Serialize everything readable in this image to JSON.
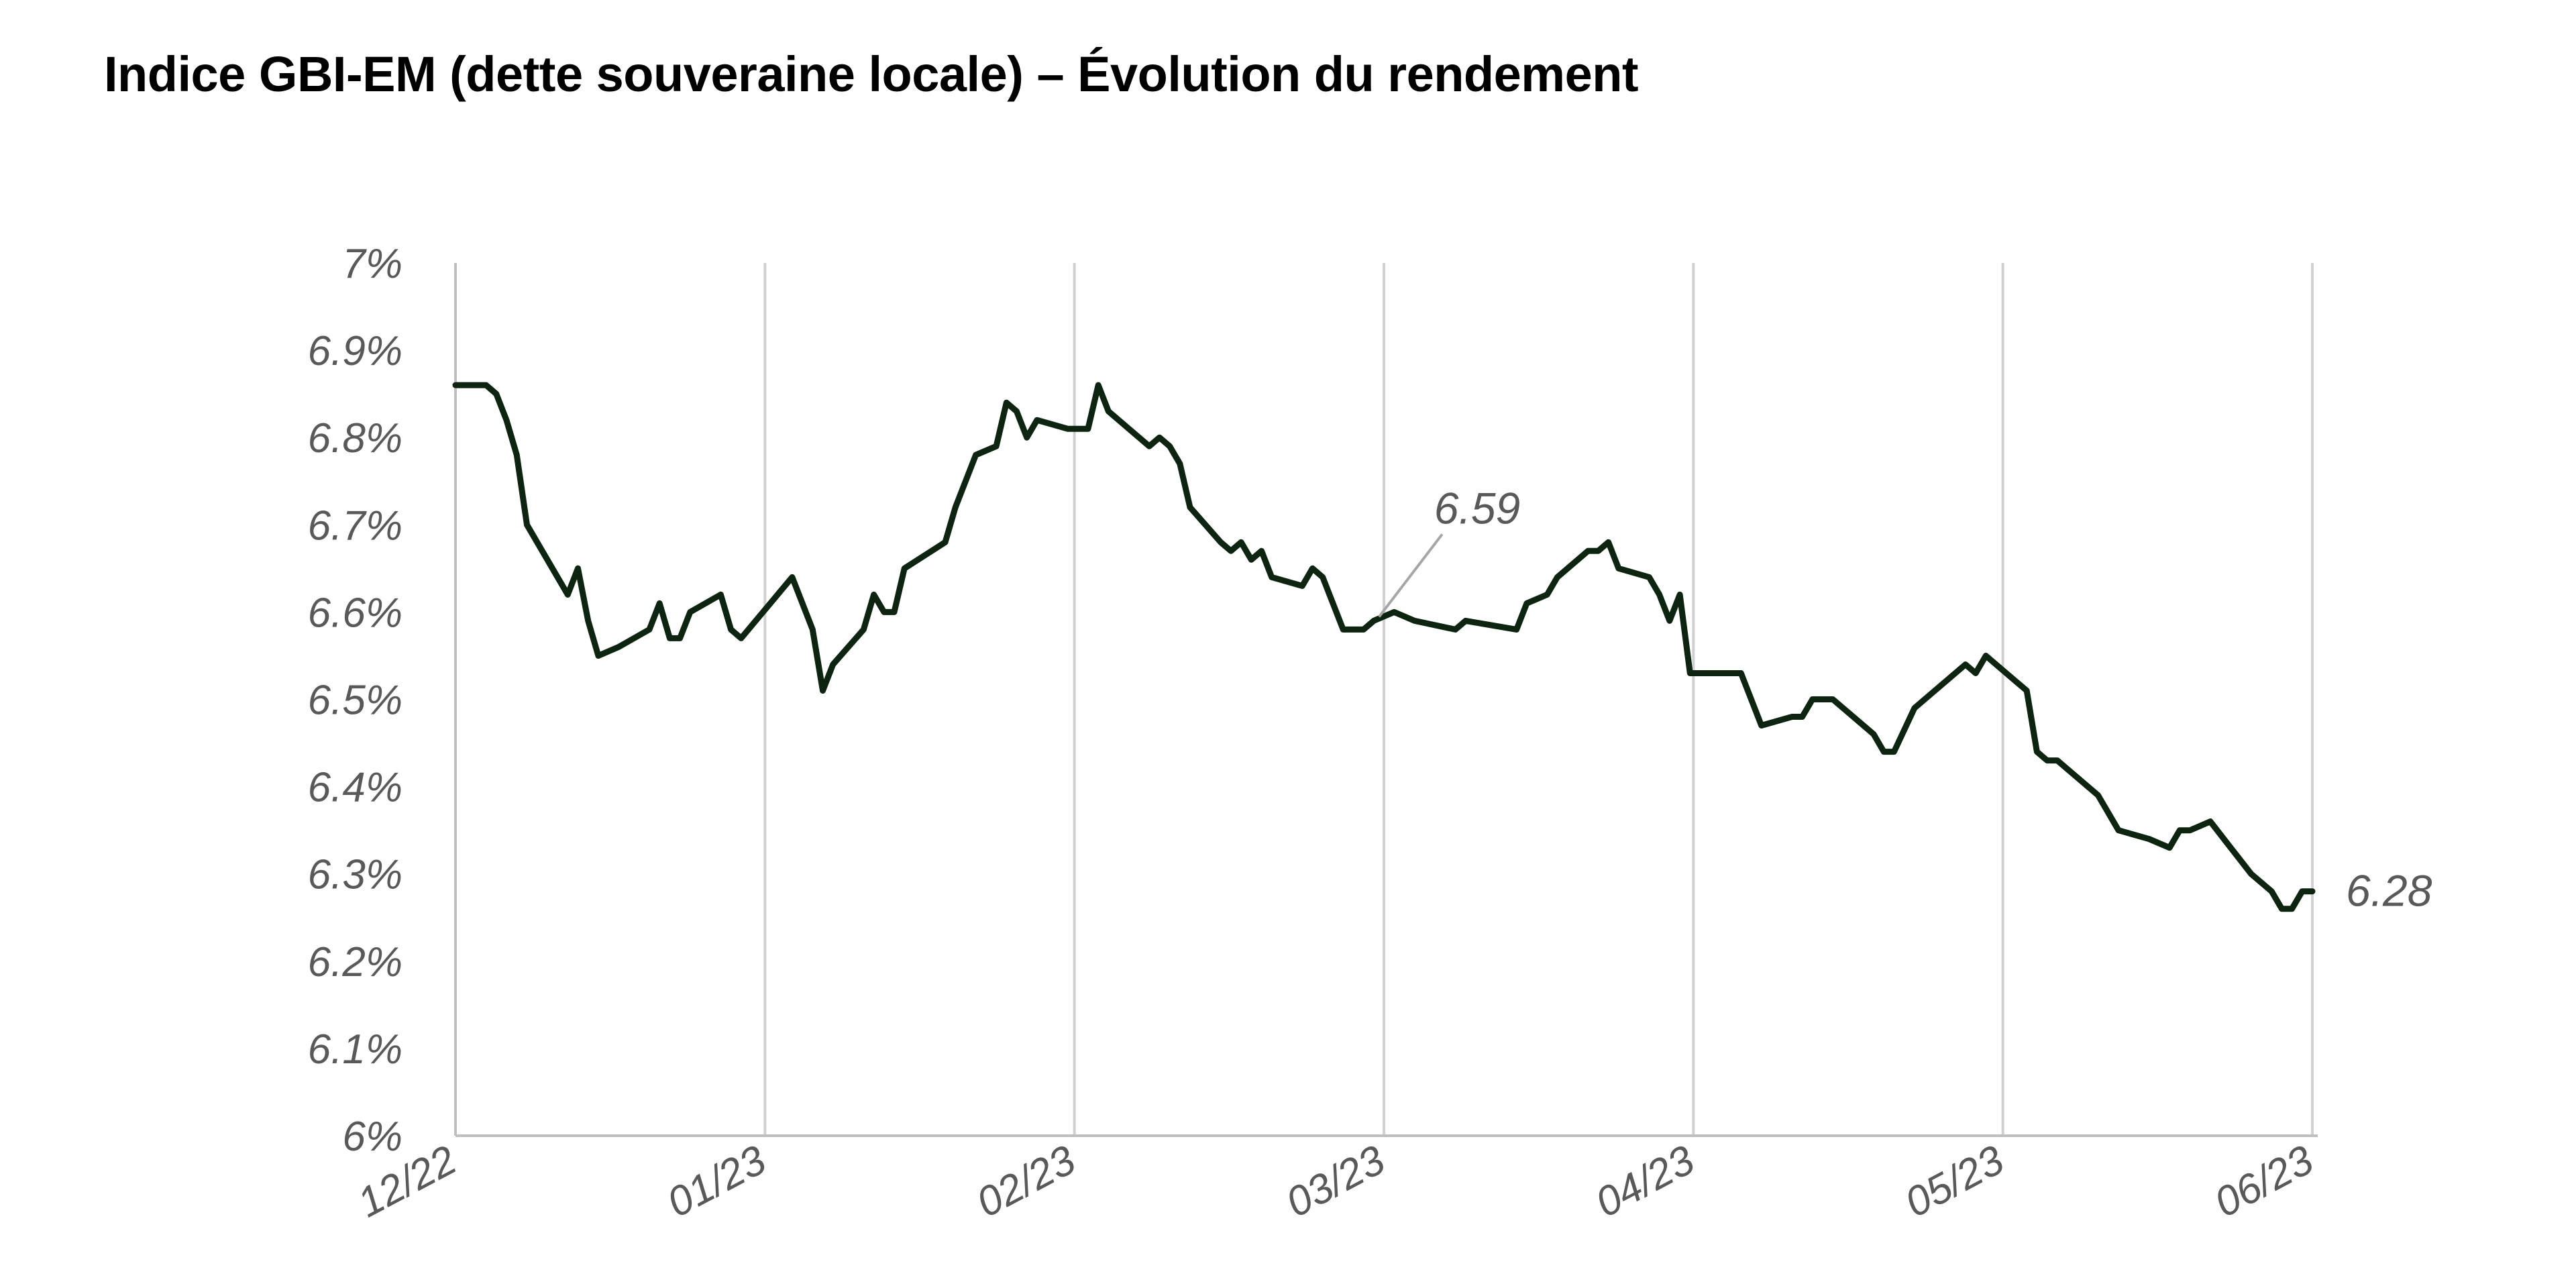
{
  "chart_data": {
    "type": "line",
    "title": "Indice GBI-EM (dette souveraine locale) – Évolution du rendement",
    "xlabel": "",
    "ylabel": "",
    "x_tick_labels": [
      "12/22",
      "01/23",
      "02/23",
      "03/23",
      "04/23",
      "05/23",
      "06/23"
    ],
    "y_tick_labels": [
      "7%",
      "6.9%",
      "6.8%",
      "6.7%",
      "6.6%",
      "6.5%",
      "6.4%",
      "6.3%",
      "6.2%",
      "6.1%",
      "6%"
    ],
    "ylim": [
      6.0,
      7.0
    ],
    "xlim": [
      "2022-12-01",
      "2023-06-01"
    ],
    "grid": "vertical",
    "legend": "none",
    "line_color": "#0d2410",
    "series": [
      {
        "points": [
          [
            "2022-12-01",
            6.86
          ],
          [
            "2022-12-04",
            6.86
          ],
          [
            "2022-12-05",
            6.85
          ],
          [
            "2022-12-06",
            6.82
          ],
          [
            "2022-12-07",
            6.78
          ],
          [
            "2022-12-08",
            6.7
          ],
          [
            "2022-12-10",
            6.66
          ],
          [
            "2022-12-12",
            6.62
          ],
          [
            "2022-12-13",
            6.65
          ],
          [
            "2022-12-14",
            6.59
          ],
          [
            "2022-12-15",
            6.55
          ],
          [
            "2022-12-17",
            6.56
          ],
          [
            "2022-12-20",
            6.58
          ],
          [
            "2022-12-21",
            6.61
          ],
          [
            "2022-12-22",
            6.57
          ],
          [
            "2022-12-23",
            6.57
          ],
          [
            "2022-12-24",
            6.6
          ],
          [
            "2022-12-27",
            6.62
          ],
          [
            "2022-12-28",
            6.58
          ],
          [
            "2022-12-29",
            6.57
          ],
          [
            "2023-01-03",
            6.64
          ],
          [
            "2023-01-05",
            6.58
          ],
          [
            "2023-01-06",
            6.51
          ],
          [
            "2023-01-07",
            6.54
          ],
          [
            "2023-01-10",
            6.58
          ],
          [
            "2023-01-11",
            6.62
          ],
          [
            "2023-01-12",
            6.6
          ],
          [
            "2023-01-13",
            6.6
          ],
          [
            "2023-01-14",
            6.65
          ],
          [
            "2023-01-18",
            6.68
          ],
          [
            "2023-01-19",
            6.72
          ],
          [
            "2023-01-21",
            6.78
          ],
          [
            "2023-01-23",
            6.79
          ],
          [
            "2023-01-24",
            6.84
          ],
          [
            "2023-01-25",
            6.83
          ],
          [
            "2023-01-26",
            6.8
          ],
          [
            "2023-01-27",
            6.82
          ],
          [
            "2023-01-30",
            6.81
          ],
          [
            "2023-01-31",
            6.81
          ],
          [
            "2023-02-01",
            6.81
          ],
          [
            "2023-02-02",
            6.86
          ],
          [
            "2023-02-03",
            6.83
          ],
          [
            "2023-02-07",
            6.79
          ],
          [
            "2023-02-08",
            6.8
          ],
          [
            "2023-02-09",
            6.79
          ],
          [
            "2023-02-10",
            6.77
          ],
          [
            "2023-02-11",
            6.72
          ],
          [
            "2023-02-14",
            6.68
          ],
          [
            "2023-02-15",
            6.67
          ],
          [
            "2023-02-16",
            6.68
          ],
          [
            "2023-02-17",
            6.66
          ],
          [
            "2023-02-18",
            6.67
          ],
          [
            "2023-02-19",
            6.64
          ],
          [
            "2023-02-22",
            6.63
          ],
          [
            "2023-02-23",
            6.65
          ],
          [
            "2023-02-24",
            6.64
          ],
          [
            "2023-02-26",
            6.58
          ],
          [
            "2023-02-28",
            6.58
          ],
          [
            "2023-03-01",
            6.59
          ],
          [
            "2023-03-03",
            6.6
          ],
          [
            "2023-03-05",
            6.59
          ],
          [
            "2023-03-09",
            6.58
          ],
          [
            "2023-03-10",
            6.59
          ],
          [
            "2023-03-15",
            6.58
          ],
          [
            "2023-03-16",
            6.61
          ],
          [
            "2023-03-18",
            6.62
          ],
          [
            "2023-03-19",
            6.64
          ],
          [
            "2023-03-22",
            6.67
          ],
          [
            "2023-03-23",
            6.67
          ],
          [
            "2023-03-24",
            6.68
          ],
          [
            "2023-03-25",
            6.65
          ],
          [
            "2023-03-28",
            6.64
          ],
          [
            "2023-03-29",
            6.62
          ],
          [
            "2023-03-30",
            6.59
          ],
          [
            "2023-03-31",
            6.62
          ],
          [
            "2023-04-01",
            6.53
          ],
          [
            "2023-04-03",
            6.53
          ],
          [
            "2023-04-06",
            6.53
          ],
          [
            "2023-04-08",
            6.47
          ],
          [
            "2023-04-11",
            6.48
          ],
          [
            "2023-04-12",
            6.48
          ],
          [
            "2023-04-13",
            6.5
          ],
          [
            "2023-04-15",
            6.5
          ],
          [
            "2023-04-19",
            6.46
          ],
          [
            "2023-04-20",
            6.44
          ],
          [
            "2023-04-21",
            6.44
          ],
          [
            "2023-04-23",
            6.49
          ],
          [
            "2023-04-26",
            6.52
          ],
          [
            "2023-04-28",
            6.54
          ],
          [
            "2023-04-29",
            6.53
          ],
          [
            "2023-04-30",
            6.55
          ],
          [
            "2023-05-01",
            6.54
          ],
          [
            "2023-05-03",
            6.52
          ],
          [
            "2023-05-04",
            6.51
          ],
          [
            "2023-05-05",
            6.44
          ],
          [
            "2023-05-06",
            6.43
          ],
          [
            "2023-05-07",
            6.43
          ],
          [
            "2023-05-11",
            6.39
          ],
          [
            "2023-05-13",
            6.35
          ],
          [
            "2023-05-16",
            6.34
          ],
          [
            "2023-05-18",
            6.33
          ],
          [
            "2023-05-19",
            6.35
          ],
          [
            "2023-05-20",
            6.35
          ],
          [
            "2023-05-22",
            6.36
          ],
          [
            "2023-05-24",
            6.33
          ],
          [
            "2023-05-26",
            6.3
          ],
          [
            "2023-05-28",
            6.28
          ],
          [
            "2023-05-29",
            6.26
          ],
          [
            "2023-05-30",
            6.26
          ],
          [
            "2023-05-31",
            6.28
          ],
          [
            "2023-06-01",
            6.28
          ]
        ]
      }
    ],
    "annotations": [
      {
        "text": "6.59",
        "x": "2023-03-01",
        "y": 6.59,
        "placement": "above-right"
      },
      {
        "text": "6.28",
        "x": "2023-06-01",
        "y": 6.28,
        "placement": "right"
      }
    ]
  }
}
